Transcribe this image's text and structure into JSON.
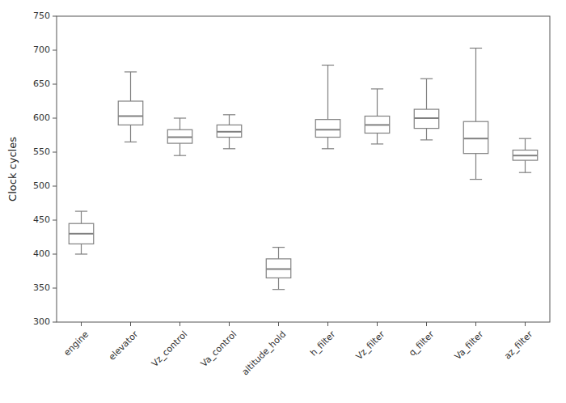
{
  "chart_data": {
    "type": "box",
    "categories": [
      "engine",
      "elevator",
      "Vz_control",
      "Va_control",
      "altitude_hold",
      "h_filter",
      "Vz_filter",
      "q_filter",
      "Va_filter",
      "az_filter"
    ],
    "boxes": [
      {
        "whislo": 400,
        "q1": 415,
        "med": 430,
        "q3": 445,
        "whishi": 463
      },
      {
        "whislo": 565,
        "q1": 590,
        "med": 603,
        "q3": 625,
        "whishi": 668
      },
      {
        "whislo": 545,
        "q1": 563,
        "med": 572,
        "q3": 583,
        "whishi": 600
      },
      {
        "whislo": 555,
        "q1": 572,
        "med": 580,
        "q3": 590,
        "whishi": 605
      },
      {
        "whislo": 348,
        "q1": 365,
        "med": 378,
        "q3": 393,
        "whishi": 410
      },
      {
        "whislo": 555,
        "q1": 572,
        "med": 583,
        "q3": 598,
        "whishi": 678
      },
      {
        "whislo": 562,
        "q1": 578,
        "med": 590,
        "q3": 603,
        "whishi": 643
      },
      {
        "whislo": 568,
        "q1": 585,
        "med": 600,
        "q3": 613,
        "whishi": 658
      },
      {
        "whislo": 510,
        "q1": 548,
        "med": 570,
        "q3": 595,
        "whishi": 703
      },
      {
        "whislo": 520,
        "q1": 538,
        "med": 545,
        "q3": 553,
        "whishi": 570
      }
    ],
    "ylabel": "Clock cycles",
    "ylim": [
      300,
      750
    ],
    "yticks": [
      300,
      350,
      400,
      450,
      500,
      550,
      600,
      650,
      700,
      750
    ],
    "color": "#808080",
    "grid": false
  }
}
